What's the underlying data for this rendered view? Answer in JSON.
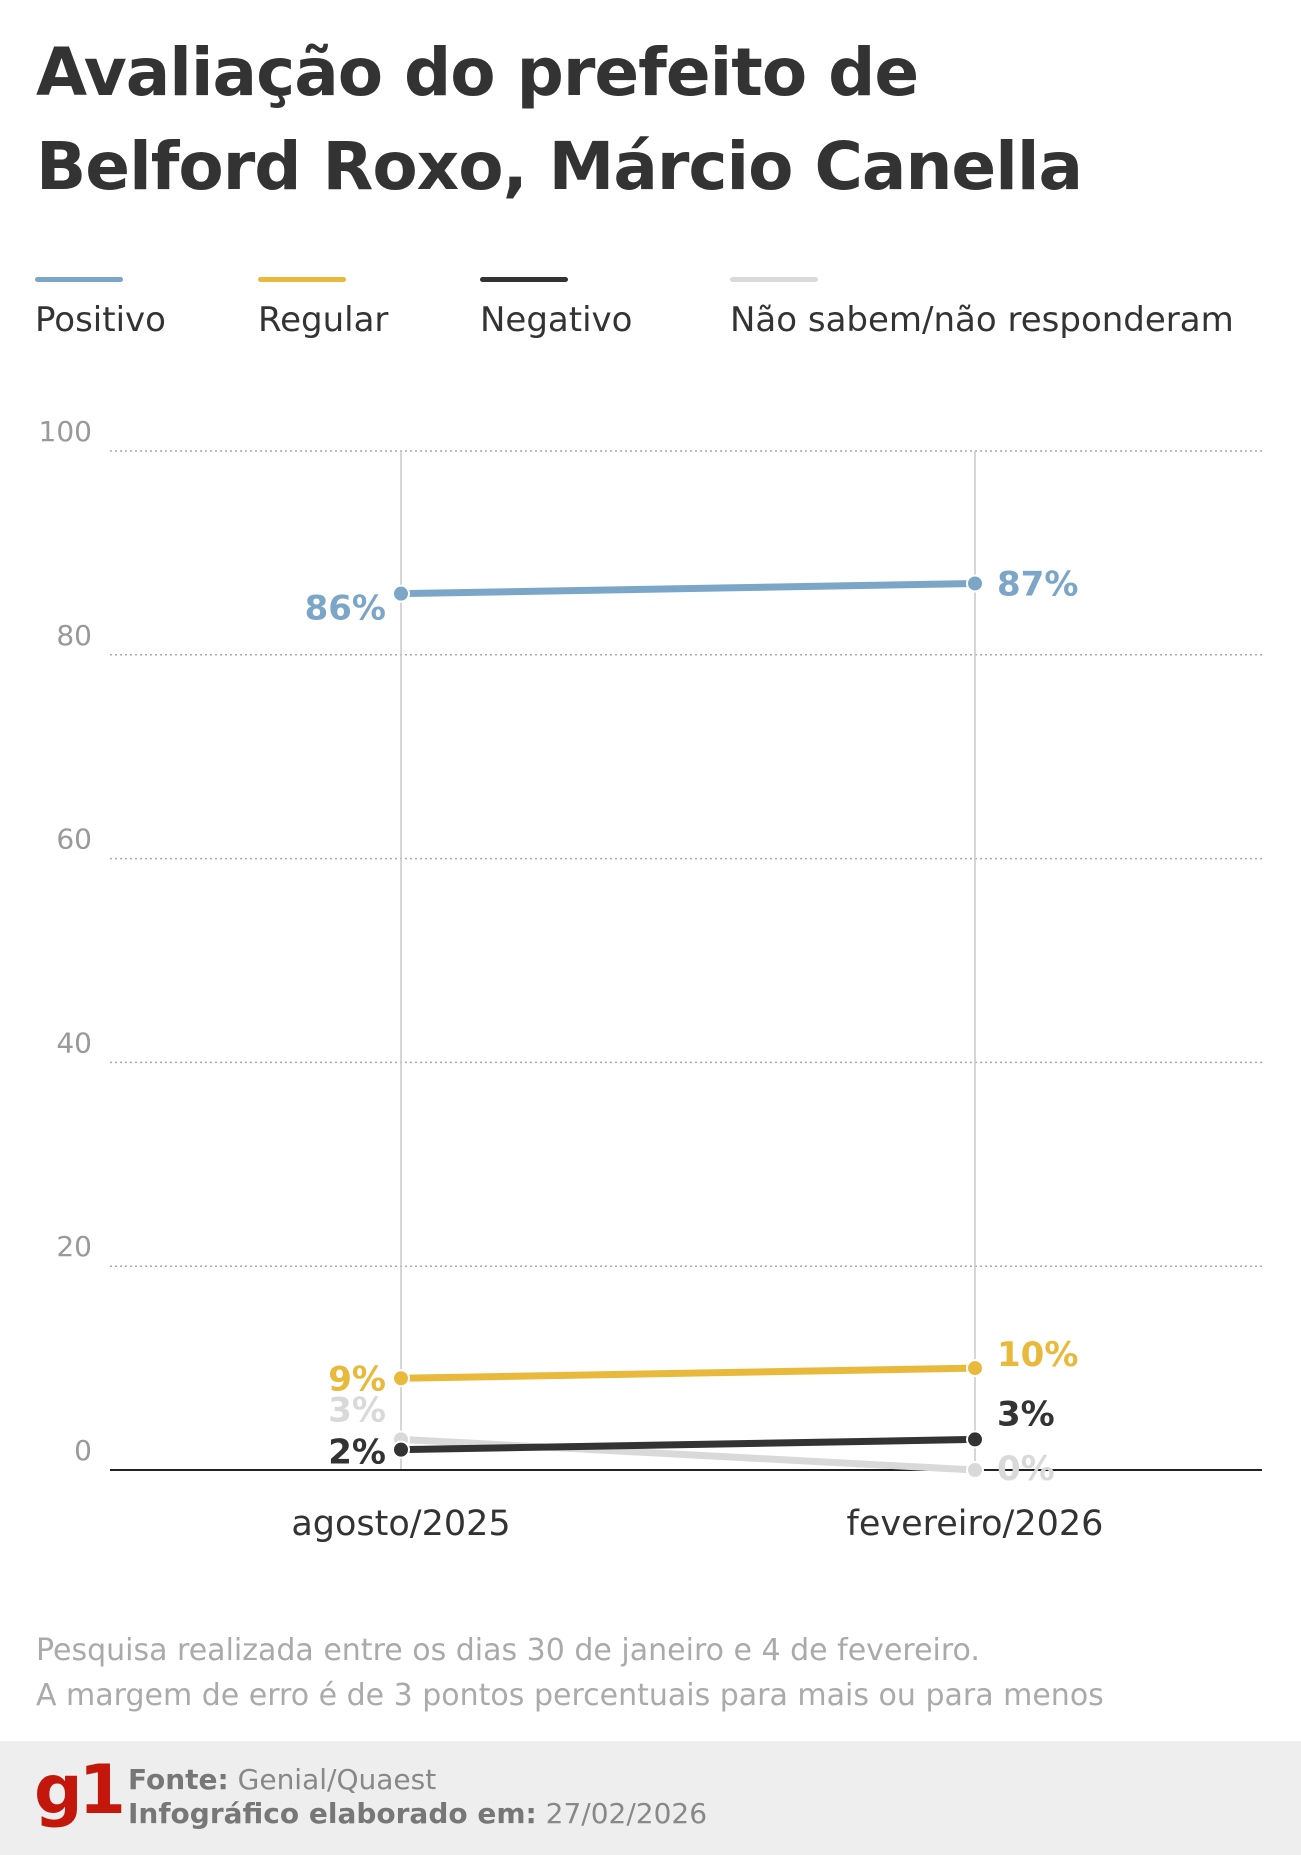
{
  "title_lines": [
    "Avaliação do prefeito de",
    "Belford Roxo, Márcio Canella"
  ],
  "chart_data": {
    "type": "line",
    "title": "Avaliação do prefeito de Belford Roxo, Márcio Canella",
    "categories": [
      "agosto/2025",
      "fevereiro/2026"
    ],
    "series": [
      {
        "name": "Positivo",
        "values": [
          86,
          87
        ],
        "labels": [
          "86%",
          "87%"
        ],
        "color": "#7ba6c8"
      },
      {
        "name": "Regular",
        "values": [
          9,
          10
        ],
        "labels": [
          "9%",
          "10%"
        ],
        "color": "#e9b93c"
      },
      {
        "name": "Negativo",
        "values": [
          2,
          3
        ],
        "labels": [
          "2%",
          "3%"
        ],
        "color": "#333333"
      },
      {
        "name": "Não sabem/não responderam",
        "values": [
          3,
          0
        ],
        "labels": [
          "3%",
          "0%"
        ],
        "color": "#d9d9d9"
      }
    ],
    "yticks": [
      "0",
      "20",
      "40",
      "60",
      "80",
      "100"
    ],
    "ylim": [
      0,
      100
    ],
    "grid": true,
    "legend": "top"
  },
  "notes": [
    "Pesquisa realizada entre os dias 30 de janeiro e 4 de fevereiro.",
    "A margem de erro é de 3 pontos percentuais para mais ou para menos"
  ],
  "footer": {
    "logo": "g1",
    "source_label": "Fonte:",
    "source_value": "Genial/Quaest",
    "date_label": "Infográfico elaborado em:",
    "date_value": "27/02/2026"
  }
}
